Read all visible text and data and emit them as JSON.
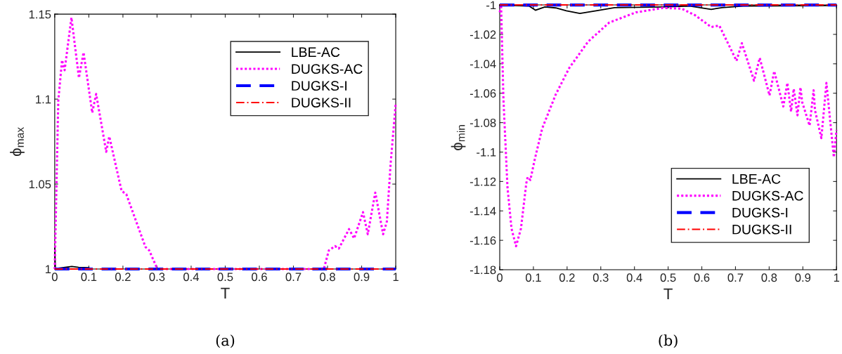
{
  "chart_data": [
    {
      "type": "line",
      "xlabel": "T",
      "ylabel": "ϕ$_{max}$",
      "annotations": [
        "(a)"
      ],
      "xlim": [
        0,
        1
      ],
      "ylim": [
        1,
        1.15
      ],
      "xticks": [
        0,
        0.1,
        0.2,
        0.3,
        0.4,
        0.5,
        0.6,
        0.7,
        0.8,
        0.9,
        1
      ],
      "yticks": [
        1,
        1.05,
        1.1,
        1.15
      ],
      "grid": false,
      "legend": "top right",
      "series": [
        {
          "name": "LBE-AC",
          "color": "#000000",
          "line_style": "solid",
          "x": [
            0,
            0.002,
            0.01,
            0.03,
            0.05,
            0.07,
            0.1
          ],
          "values": [
            1.013,
            1.0,
            1.0005,
            1.001,
            1.0015,
            1.001,
            1.0008
          ]
        },
        {
          "name": "DUGKS-AC",
          "color": "#ff00ff",
          "line_style": "dotted",
          "x": [
            0,
            0.0104,
            0.0215,
            0.029,
            0.049,
            0.071,
            0.0845,
            0.11,
            0.1215,
            0.151,
            0.16,
            0.196,
            0.21,
            0.266,
            0.277,
            0.301,
            0.789,
            0.804,
            0.822,
            0.833,
            0.863,
            0.878,
            0.904,
            0.918,
            0.94,
            0.963,
            0.974,
            0.985,
            1
          ],
          "values": [
            1.0,
            1.099,
            1.123,
            1.117,
            1.148,
            1.1125,
            1.1275,
            1.092,
            1.103,
            1.069,
            1.078,
            1.046,
            1.044,
            1.013,
            1.011,
            1.0,
            1.0,
            1.011,
            1.0135,
            1.012,
            1.0235,
            1.018,
            1.0335,
            1.0205,
            1.045,
            1.0205,
            1.028,
            1.062,
            1.0976
          ]
        },
        {
          "name": "DUGKS-I",
          "color": "#0000ff",
          "line_style": "dashed",
          "x": [
            0,
            1
          ],
          "values": [
            1.0,
            1.0
          ]
        },
        {
          "name": "DUGKS-II",
          "color": "#ff0000",
          "line_style": "dashdot",
          "x": [
            0,
            1
          ],
          "values": [
            1.0,
            1.0
          ]
        }
      ]
    },
    {
      "type": "line",
      "xlabel": "T",
      "ylabel": "ϕ$_{min}$",
      "annotations": [
        "(b)"
      ],
      "xlim": [
        0,
        1
      ],
      "ylim": [
        -1.18,
        -1
      ],
      "xticks": [
        0,
        0.1,
        0.2,
        0.3,
        0.4,
        0.5,
        0.6,
        0.7,
        0.8,
        0.9,
        1
      ],
      "yticks": [
        -1.18,
        -1.16,
        -1.14,
        -1.12,
        -1.1,
        -1.08,
        -1.06,
        -1.04,
        -1.02,
        -1
      ],
      "grid": false,
      "legend": "bottom right",
      "series": [
        {
          "name": "LBE-AC",
          "color": "#000000",
          "line_style": "solid",
          "x": [
            0,
            0.087,
            0.106,
            0.134,
            0.166,
            0.198,
            0.238,
            0.286,
            0.341,
            0.485,
            0.564,
            0.628,
            0.66,
            0.723,
            1
          ],
          "values": [
            -1.0,
            -1.0007,
            -1.0036,
            -1.0013,
            -1.002,
            -1.004,
            -1.0058,
            -1.004,
            -1.0018,
            -1.0013,
            -1.0007,
            -1.003,
            -1.0018,
            -1.0007,
            -1.0004
          ]
        },
        {
          "name": "DUGKS-AC",
          "color": "#ff00ff",
          "line_style": "dotted",
          "x": [
            0,
            0.004,
            0.011,
            0.023,
            0.035,
            0.0485,
            0.063,
            0.079,
            0.083,
            0.091,
            0.103,
            0.126,
            0.166,
            0.206,
            0.262,
            0.325,
            0.405,
            0.485,
            0.54,
            0.58,
            0.628,
            0.652,
            0.703,
            0.719,
            0.755,
            0.772,
            0.801,
            0.815,
            0.842,
            0.854,
            0.865,
            0.873,
            0.884,
            0.893,
            0.898,
            0.92,
            0.932,
            0.936,
            0.955,
            0.97,
            0.992,
            1
          ],
          "values": [
            -1.005,
            -1.0,
            -1.064,
            -1.124,
            -1.152,
            -1.164,
            -1.152,
            -1.121,
            -1.117,
            -1.119,
            -1.106,
            -1.084,
            -1.061,
            -1.043,
            -1.025,
            -1.012,
            -1.005,
            -1.002,
            -1.0025,
            -1.007,
            -1.015,
            -1.014,
            -1.038,
            -1.026,
            -1.0515,
            -1.036,
            -1.0615,
            -1.045,
            -1.069,
            -1.053,
            -1.0725,
            -1.057,
            -1.075,
            -1.056,
            -1.066,
            -1.082,
            -1.058,
            -1.0715,
            -1.0905,
            -1.053,
            -1.1035,
            -1.085
          ]
        },
        {
          "name": "DUGKS-I",
          "color": "#0000ff",
          "line_style": "dashed",
          "x": [
            0,
            1
          ],
          "values": [
            -1.0,
            -1.0
          ]
        },
        {
          "name": "DUGKS-II",
          "color": "#ff0000",
          "line_style": "dashdot",
          "x": [
            0,
            1
          ],
          "values": [
            -1.0,
            -1.0
          ]
        }
      ]
    }
  ]
}
